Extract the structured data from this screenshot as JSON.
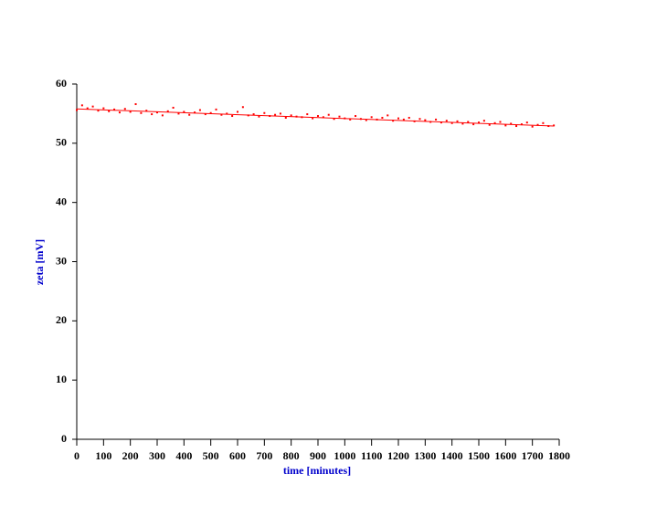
{
  "chart_data": {
    "type": "scatter",
    "x_label": "time [minutes]",
    "y_label": "zeta [mV]",
    "xlim": [
      0,
      1800
    ],
    "ylim": [
      0,
      60
    ],
    "xticks": [
      0,
      100,
      200,
      300,
      400,
      500,
      600,
      700,
      800,
      900,
      1000,
      1100,
      1200,
      1300,
      1400,
      1500,
      1600,
      1700,
      1800
    ],
    "yticks": [
      0,
      10,
      20,
      30,
      40,
      50,
      60
    ],
    "series": [
      {
        "kind": "points",
        "color": "#ff0000",
        "x": [
          0,
          20,
          40,
          60,
          80,
          100,
          120,
          140,
          160,
          180,
          200,
          220,
          240,
          260,
          280,
          300,
          320,
          340,
          360,
          380,
          400,
          420,
          440,
          460,
          480,
          500,
          520,
          540,
          560,
          580,
          600,
          620,
          640,
          660,
          680,
          700,
          720,
          740,
          760,
          780,
          800,
          820,
          840,
          860,
          880,
          900,
          920,
          940,
          960,
          980,
          1000,
          1020,
          1040,
          1060,
          1080,
          1100,
          1120,
          1140,
          1160,
          1180,
          1200,
          1220,
          1240,
          1260,
          1280,
          1300,
          1320,
          1340,
          1360,
          1380,
          1400,
          1420,
          1440,
          1460,
          1480,
          1500,
          1520,
          1540,
          1560,
          1580,
          1600,
          1620,
          1640,
          1660,
          1680,
          1700,
          1720,
          1740,
          1760,
          1780
        ],
        "values": [
          55.6,
          56.4,
          55.9,
          56.2,
          55.5,
          55.9,
          55.4,
          55.7,
          55.2,
          55.8,
          55.3,
          56.6,
          55.1,
          55.5,
          54.9,
          55.2,
          54.7,
          55.4,
          56.0,
          55.0,
          55.3,
          54.8,
          55.2,
          55.6,
          54.9,
          55.1,
          55.7,
          54.8,
          55.0,
          54.6,
          55.3,
          56.1,
          54.7,
          54.9,
          54.5,
          55.1,
          54.6,
          54.8,
          55.0,
          54.3,
          54.7,
          54.5,
          54.4,
          54.9,
          54.2,
          54.6,
          54.4,
          54.8,
          54.1,
          54.5,
          54.2,
          54.0,
          54.6,
          54.1,
          53.9,
          54.4,
          54.0,
          54.3,
          54.7,
          53.8,
          54.2,
          54.0,
          54.3,
          53.7,
          54.1,
          53.9,
          53.6,
          54.0,
          53.5,
          53.8,
          53.4,
          53.7,
          53.3,
          53.6,
          53.2,
          53.5,
          53.8,
          53.1,
          53.4,
          53.6,
          53.0,
          53.3,
          52.9,
          53.2,
          53.5,
          52.8,
          53.1,
          53.4,
          52.9,
          53.0
        ]
      },
      {
        "kind": "line",
        "color": "#ff0000",
        "x": [
          0,
          1780
        ],
        "values": [
          55.8,
          52.9
        ]
      }
    ]
  }
}
